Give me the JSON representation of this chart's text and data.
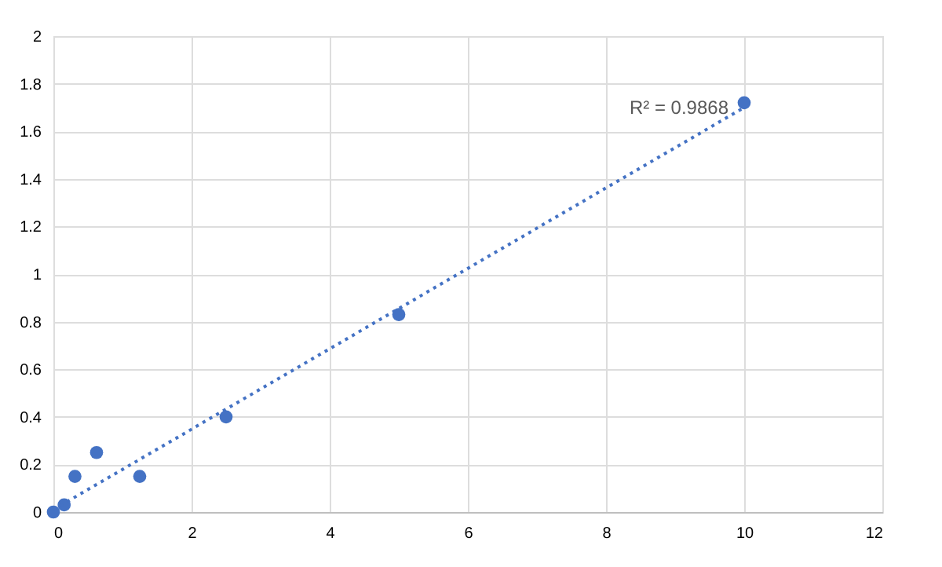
{
  "chart_data": {
    "type": "scatter",
    "x": [
      0,
      0.156,
      0.312,
      0.625,
      1.25,
      2.5,
      5,
      10
    ],
    "series": [
      {
        "color": "#4472c4",
        "values": [
          0,
          0.03,
          0.15,
          0.25,
          0.15,
          0.4,
          0.83,
          1.72
        ]
      },
      {
        "type": "line",
        "color": "#4472c4",
        "x": [
          0,
          10
        ],
        "values": [
          0.01,
          1.7
        ],
        "line_style": "dotted",
        "marker": "none"
      }
    ],
    "annotations": [
      "R² = 0.9868"
    ],
    "xlim": [
      0,
      12
    ],
    "xticks": [
      0,
      2,
      4,
      6,
      8,
      10,
      12
    ],
    "ylim": [
      0,
      2
    ],
    "yticks": [
      0,
      0.2,
      0.4,
      0.6,
      0.8,
      1,
      1.2,
      1.4,
      1.6,
      1.8,
      2
    ],
    "grid": true,
    "marker": "circle"
  }
}
